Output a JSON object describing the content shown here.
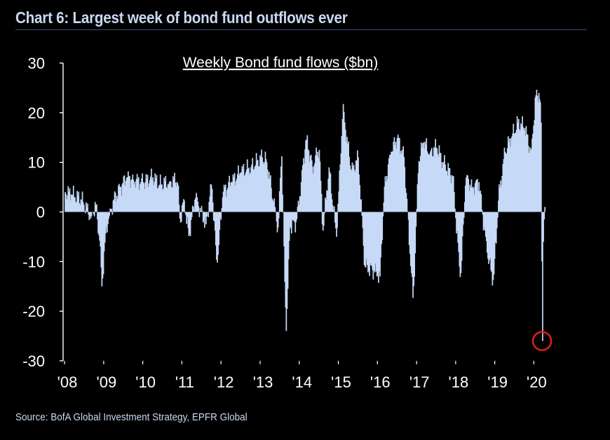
{
  "heading": "Chart 6: Largest week of bond fund outflows ever",
  "source": "Source: BofA Global Investment Strategy, EPFR Global",
  "colors": {
    "background": "#000000",
    "bars": "#c6d9f7",
    "text": "#ffffff",
    "axis": "#ffffff",
    "highlight_circle": "#e02020"
  },
  "chart_data": {
    "type": "bar",
    "title": "Weekly Bond fund flows ($bn)",
    "xlabel": "",
    "ylabel": "",
    "ylim": [
      -30,
      30
    ],
    "yticks": [
      30,
      20,
      10,
      0,
      -10,
      -20,
      -30
    ],
    "x_tick_labels": [
      "'08",
      "'09",
      "'10",
      "'11",
      "'12",
      "'13",
      "'14",
      "'15",
      "'16",
      "'17",
      "'18",
      "'19",
      "'20"
    ],
    "x_range": [
      "2008-01",
      "2020-05"
    ],
    "grid": false,
    "frequency": "weekly",
    "annotation": {
      "type": "circle",
      "date": "2020-03-18",
      "value": -26.0,
      "color": "#e02020"
    },
    "series": [
      {
        "values": [
          {
            "date": "2008-01-02",
            "value": 4.0
          },
          {
            "date": "2008-03-01",
            "value": 3.5
          },
          {
            "date": "2008-06-01",
            "value": 2.5
          },
          {
            "date": "2008-09-01",
            "value": -1.0
          },
          {
            "date": "2008-10-15",
            "value": 1.5
          },
          {
            "date": "2008-11-20",
            "value": -6.0
          },
          {
            "date": "2008-12-10",
            "value": -15.0
          },
          {
            "date": "2009-01-15",
            "value": -4.0
          },
          {
            "date": "2009-02-15",
            "value": -1.0
          },
          {
            "date": "2009-04-01",
            "value": 2.5
          },
          {
            "date": "2009-06-01",
            "value": 5.0
          },
          {
            "date": "2009-08-01",
            "value": 7.0
          },
          {
            "date": "2009-10-01",
            "value": 6.5
          },
          {
            "date": "2010-01-01",
            "value": 6.0
          },
          {
            "date": "2010-04-01",
            "value": 7.0
          },
          {
            "date": "2010-06-01",
            "value": 5.5
          },
          {
            "date": "2010-09-01",
            "value": 6.0
          },
          {
            "date": "2010-11-15",
            "value": 6.5
          },
          {
            "date": "2010-12-10",
            "value": -2.0
          },
          {
            "date": "2011-01-15",
            "value": 3.0
          },
          {
            "date": "2011-03-01",
            "value": -5.0
          },
          {
            "date": "2011-05-01",
            "value": 3.0
          },
          {
            "date": "2011-08-10",
            "value": -2.5
          },
          {
            "date": "2011-10-01",
            "value": 6.0
          },
          {
            "date": "2011-11-20",
            "value": -11.0
          },
          {
            "date": "2012-01-15",
            "value": 4.0
          },
          {
            "date": "2012-04-01",
            "value": 6.0
          },
          {
            "date": "2012-07-01",
            "value": 8.0
          },
          {
            "date": "2012-10-01",
            "value": 9.0
          },
          {
            "date": "2013-01-15",
            "value": 11.0
          },
          {
            "date": "2013-03-01",
            "value": 10.0
          },
          {
            "date": "2013-05-01",
            "value": 2.0
          },
          {
            "date": "2013-06-15",
            "value": -3.5
          },
          {
            "date": "2013-07-15",
            "value": 13.0
          },
          {
            "date": "2013-08-15",
            "value": -15.0
          },
          {
            "date": "2013-08-28",
            "value": -24.0
          },
          {
            "date": "2013-10-01",
            "value": -3.0
          },
          {
            "date": "2013-12-01",
            "value": -2.0
          },
          {
            "date": "2014-01-15",
            "value": 6.0
          },
          {
            "date": "2014-03-01",
            "value": 15.0
          },
          {
            "date": "2014-05-01",
            "value": 9.0
          },
          {
            "date": "2014-07-01",
            "value": 13.0
          },
          {
            "date": "2014-08-05",
            "value": -4.0
          },
          {
            "date": "2014-10-01",
            "value": 9.0
          },
          {
            "date": "2014-12-10",
            "value": -5.0
          },
          {
            "date": "2015-01-15",
            "value": 10.0
          },
          {
            "date": "2015-02-10",
            "value": 22.0
          },
          {
            "date": "2015-03-01",
            "value": 17.0
          },
          {
            "date": "2015-05-01",
            "value": 8.0
          },
          {
            "date": "2015-07-01",
            "value": 11.0
          },
          {
            "date": "2015-09-01",
            "value": -11.0
          },
          {
            "date": "2015-12-15",
            "value": -12.0
          },
          {
            "date": "2016-01-20",
            "value": -13.0
          },
          {
            "date": "2016-03-01",
            "value": 5.0
          },
          {
            "date": "2016-05-01",
            "value": 12.0
          },
          {
            "date": "2016-07-01",
            "value": 15.0
          },
          {
            "date": "2016-09-01",
            "value": 11.0
          },
          {
            "date": "2016-11-25",
            "value": -18.0
          },
          {
            "date": "2017-01-15",
            "value": 10.0
          },
          {
            "date": "2017-03-01",
            "value": 14.0
          },
          {
            "date": "2017-05-01",
            "value": 12.0
          },
          {
            "date": "2017-07-01",
            "value": 13.0
          },
          {
            "date": "2017-09-01",
            "value": 10.0
          },
          {
            "date": "2017-12-01",
            "value": 7.0
          },
          {
            "date": "2018-02-10",
            "value": -14.0
          },
          {
            "date": "2018-04-01",
            "value": 7.0
          },
          {
            "date": "2018-06-01",
            "value": 5.0
          },
          {
            "date": "2018-08-01",
            "value": 6.0
          },
          {
            "date": "2018-10-15",
            "value": -8.0
          },
          {
            "date": "2018-12-15",
            "value": -14.0
          },
          {
            "date": "2019-02-01",
            "value": 3.0
          },
          {
            "date": "2019-04-01",
            "value": 12.0
          },
          {
            "date": "2019-06-01",
            "value": 15.0
          },
          {
            "date": "2019-08-01",
            "value": 18.0
          },
          {
            "date": "2019-10-01",
            "value": 17.0
          },
          {
            "date": "2019-12-01",
            "value": 12.0
          },
          {
            "date": "2020-01-15",
            "value": 23.5
          },
          {
            "date": "2020-02-15",
            "value": 24.0
          },
          {
            "date": "2020-03-04",
            "value": 18.0
          },
          {
            "date": "2020-03-11",
            "value": -10.0
          },
          {
            "date": "2020-03-18",
            "value": -26.0
          },
          {
            "date": "2020-03-25",
            "value": -6.0
          },
          {
            "date": "2020-04-08",
            "value": 1.0
          }
        ]
      }
    ]
  }
}
